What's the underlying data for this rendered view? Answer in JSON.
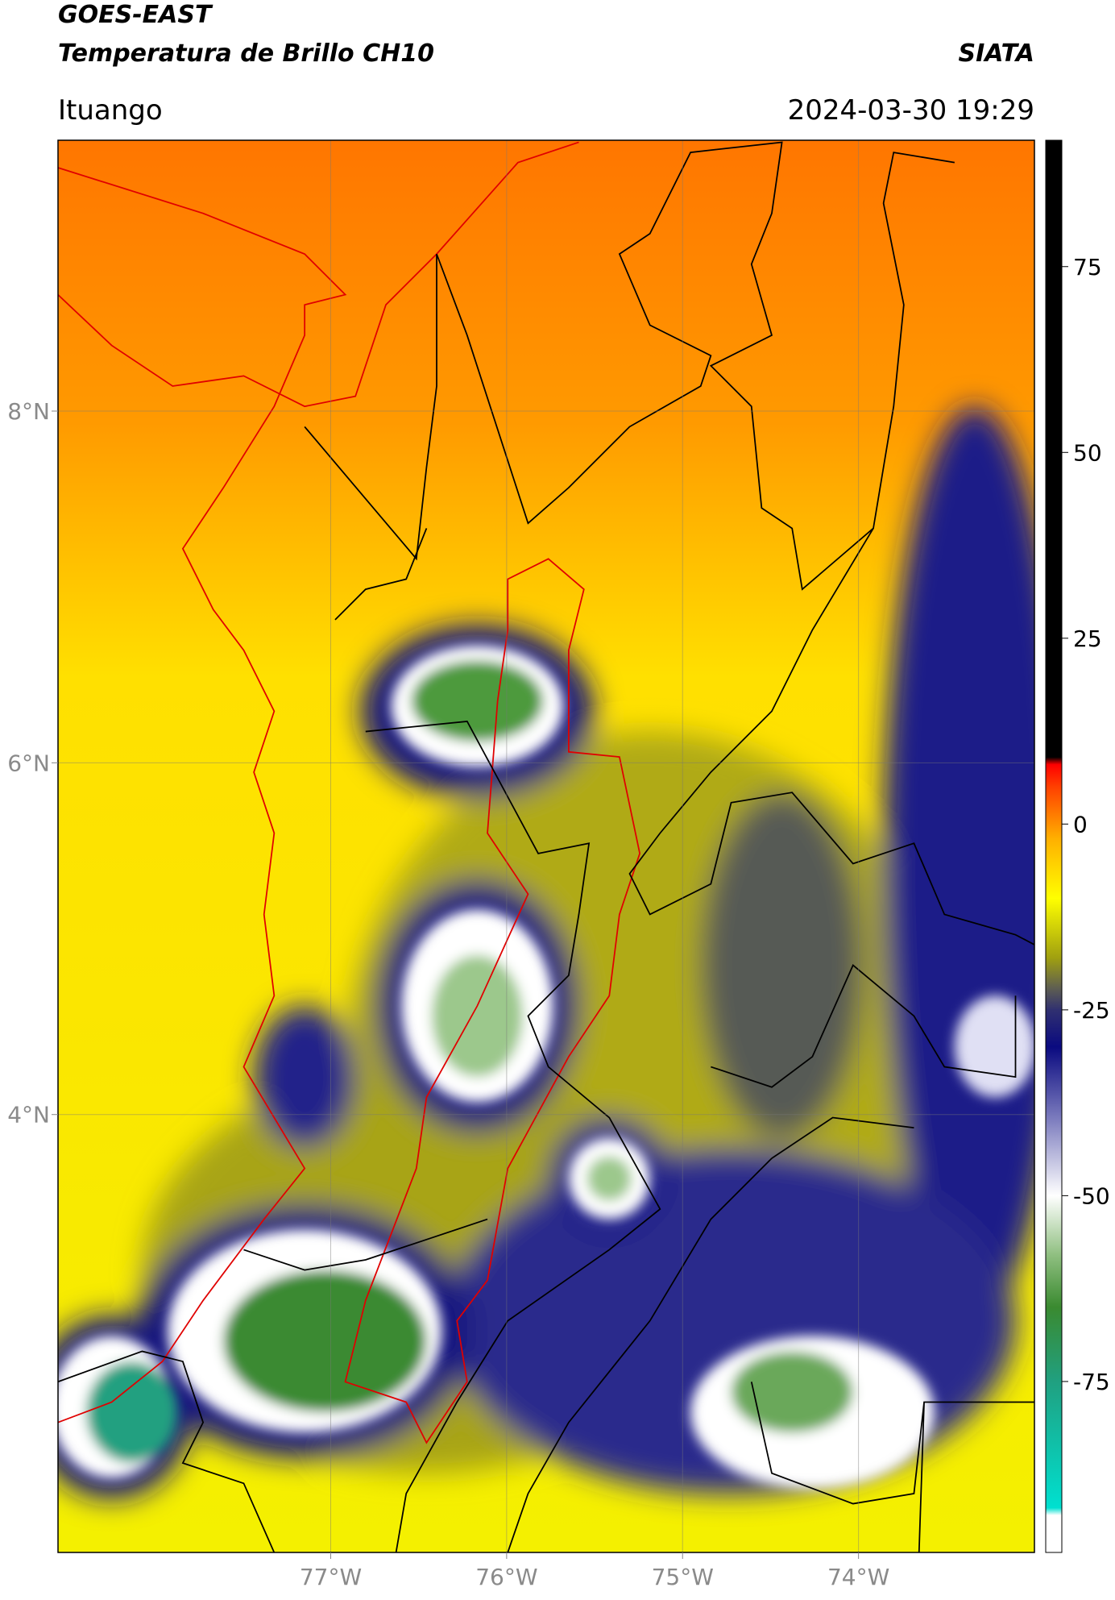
{
  "chart_data": {
    "type": "map",
    "title": "GOES-EAST",
    "subtitle": "Temperatura de Brillo CH10",
    "source": "SIATA",
    "location": "Ituango",
    "timestamp": "2024-03-30 19:29",
    "xlim": [
      -78.55,
      -73.0
    ],
    "ylim": [
      1.51,
      9.54
    ],
    "xticks": [
      {
        "value": -77,
        "label": "77°W"
      },
      {
        "value": -76,
        "label": "76°W"
      },
      {
        "value": -75,
        "label": "75°W"
      },
      {
        "value": -74,
        "label": "74°W"
      }
    ],
    "yticks": [
      {
        "value": 4,
        "label": "4°N"
      },
      {
        "value": 6,
        "label": "6°N"
      },
      {
        "value": 8,
        "label": "8°N"
      }
    ],
    "grid": true,
    "colorbar": {
      "lim": [
        -98,
        92
      ],
      "ticks": [
        -75,
        -50,
        -25,
        0,
        25,
        50,
        75
      ],
      "stops": [
        {
          "value": -98,
          "color": "#ffffff"
        },
        {
          "value": -93,
          "color": "#ffffff"
        },
        {
          "value": -92,
          "color": "#00e0d0"
        },
        {
          "value": -75,
          "color": "#20a080"
        },
        {
          "value": -65,
          "color": "#3a8a30"
        },
        {
          "value": -58,
          "color": "#8fbf80"
        },
        {
          "value": -50,
          "color": "#ffffff"
        },
        {
          "value": -40,
          "color": "#8080c0"
        },
        {
          "value": -30,
          "color": "#0a0a80"
        },
        {
          "value": -25,
          "color": "#303070"
        },
        {
          "value": -22,
          "color": "#606050"
        },
        {
          "value": -18,
          "color": "#a0a010"
        },
        {
          "value": -10,
          "color": "#ffff00"
        },
        {
          "value": -2,
          "color": "#ffb000"
        },
        {
          "value": 5,
          "color": "#ff4000"
        },
        {
          "value": 8,
          "color": "#ff0000"
        },
        {
          "value": 9,
          "color": "#000000"
        },
        {
          "value": 92,
          "color": "#000000"
        }
      ]
    }
  }
}
